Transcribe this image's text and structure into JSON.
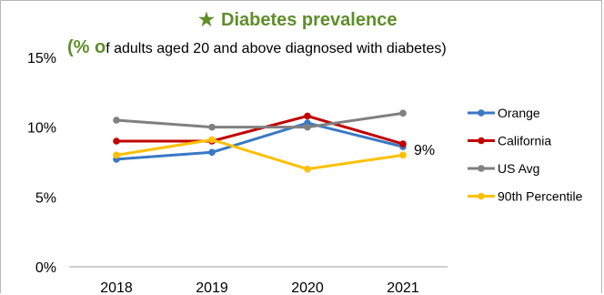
{
  "chart_data": {
    "type": "line",
    "title": "Diabetes prevalence",
    "title_marker": "★",
    "subtitle_prefix": "(% o",
    "subtitle_rest": "f adults aged 20 and above diagnosed with diabetes)",
    "categories": [
      "2018",
      "2019",
      "2020",
      "2021"
    ],
    "y_ticks": [
      "0%",
      "5%",
      "10%",
      "15%"
    ],
    "ylim": [
      0,
      15
    ],
    "grid": false,
    "legend_position": "right",
    "end_label": "9%",
    "series": [
      {
        "name": "Orange",
        "color": "#3a78c4",
        "values": [
          7.7,
          8.2,
          10.3,
          8.6
        ]
      },
      {
        "name": "California",
        "color": "#c00000",
        "values": [
          9.0,
          9.0,
          10.8,
          8.8
        ]
      },
      {
        "name": "US Avg",
        "color": "#808080",
        "values": [
          10.5,
          10.0,
          10.0,
          11.0
        ]
      },
      {
        "name": "90th Percentile",
        "color": "#ffc000",
        "values": [
          8.0,
          9.1,
          7.0,
          8.0
        ]
      }
    ],
    "colors": {
      "title": "#5f8e2a",
      "axis": "#bfbfbf",
      "text": "#000000"
    }
  }
}
